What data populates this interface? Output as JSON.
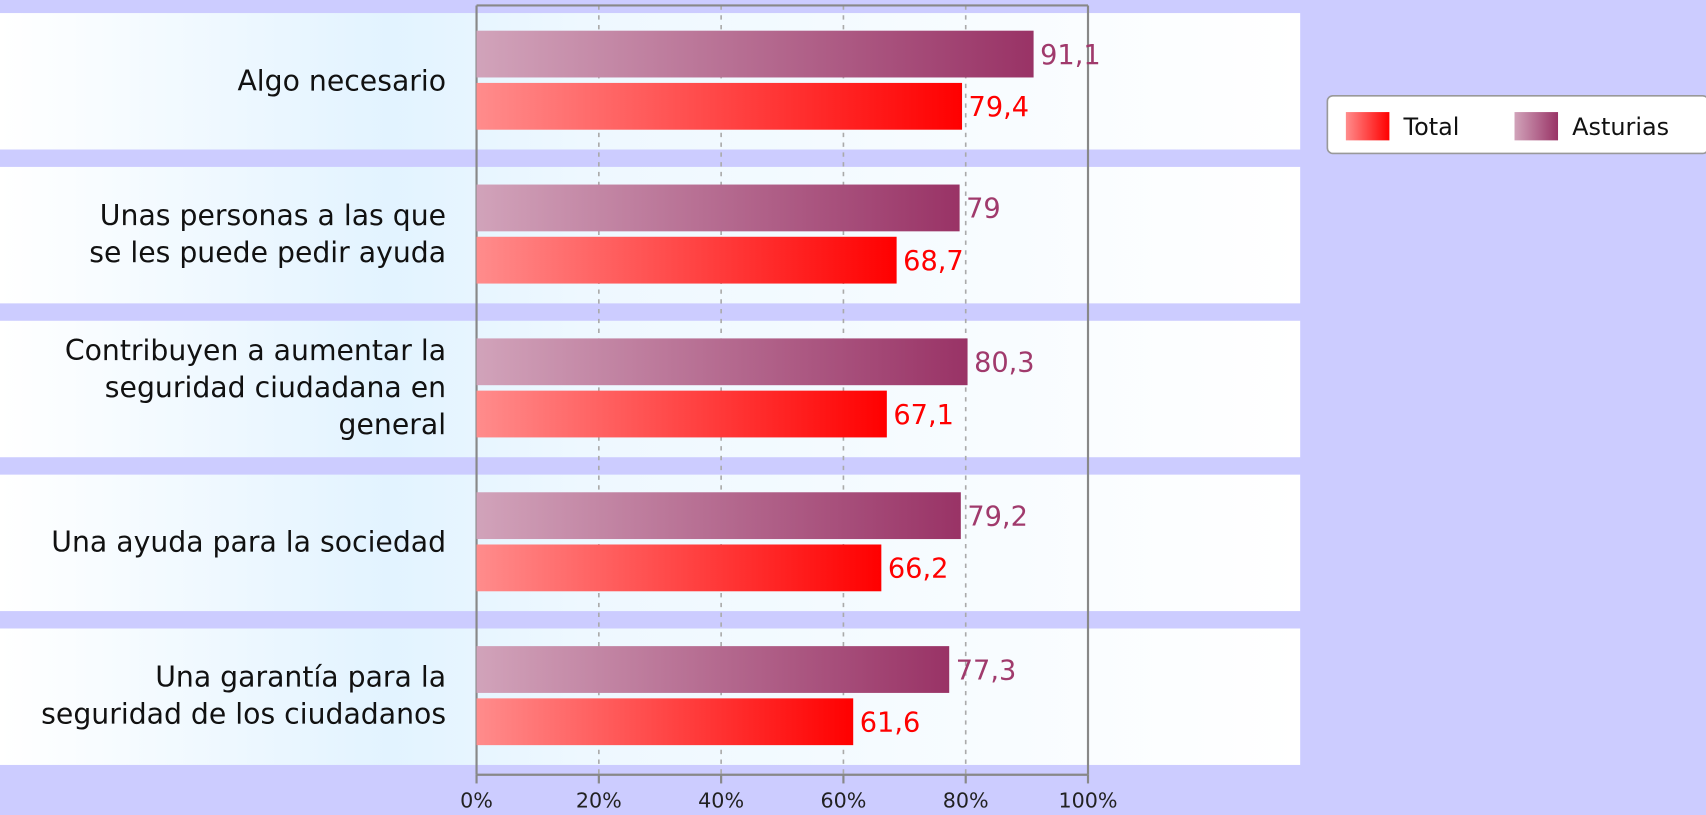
{
  "chart_data": {
    "type": "bar",
    "orientation": "horizontal",
    "categories": [
      "Algo necesario",
      "Unas personas a las que\nse les puede pedir ayuda",
      "Contribuyen a aumentar la\nseguridad ciudadana en\ngeneral",
      "Una ayuda para la sociedad",
      "Una garantía para la\nseguridad de los ciudadanos"
    ],
    "series": [
      {
        "name": "Total",
        "color": "#ff0000",
        "values": [
          79.4,
          68.7,
          67.1,
          66.2,
          61.6
        ],
        "value_labels": [
          "79,4",
          "68,7",
          "67,1",
          "66,2",
          "61,6"
        ]
      },
      {
        "name": "Asturias",
        "color": "#993366",
        "values": [
          91.1,
          79,
          80.3,
          79.2,
          77.3
        ],
        "value_labels": [
          "91,1",
          "79",
          "80,3",
          "79,2",
          "77,3"
        ]
      }
    ],
    "xlim": [
      0,
      100
    ],
    "xticks": [
      {
        "value": 0,
        "label": "0%"
      },
      {
        "value": 20,
        "label": "20%"
      },
      {
        "value": 40,
        "label": "40%"
      },
      {
        "value": 60,
        "label": "60%"
      },
      {
        "value": 80,
        "label": "80%"
      },
      {
        "value": 100,
        "label": "100%"
      }
    ],
    "grid": true,
    "legend": "top-right"
  }
}
